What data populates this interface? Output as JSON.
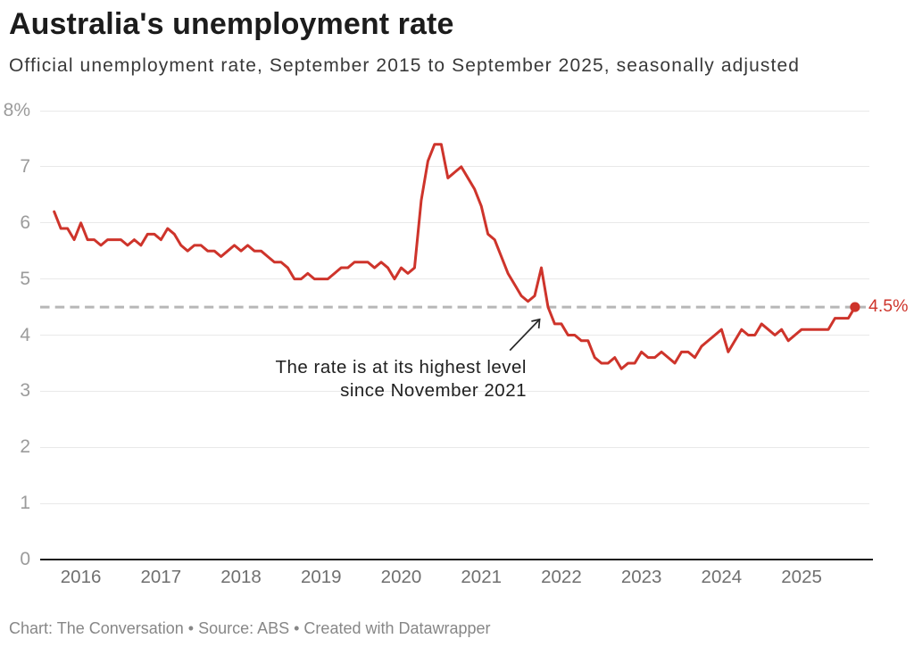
{
  "header": {
    "title": "Australia's unemployment rate",
    "subtitle": "Official unemployment rate, September 2015 to September 2025, seasonally adjusted"
  },
  "footer": {
    "text": "Chart: The Conversation • Source: ABS • Created with Datawrapper"
  },
  "annotation": {
    "line1": "The rate is at its highest level",
    "line2": "since November 2021"
  },
  "end_value_label": "4.5%",
  "chart_data": {
    "type": "line",
    "title": "Australia's unemployment rate",
    "subtitle": "Official unemployment rate, September 2015 to September 2025, seasonally adjusted",
    "x_start_month": "2015-09",
    "x_end_month": "2025-09",
    "x_tick_labels": [
      "2016",
      "2017",
      "2018",
      "2019",
      "2020",
      "2021",
      "2022",
      "2023",
      "2024",
      "2025"
    ],
    "y_tick_labels": [
      "0",
      "1",
      "2",
      "3",
      "4",
      "5",
      "6",
      "7",
      "8%"
    ],
    "ylim": [
      0,
      8
    ],
    "grid": true,
    "legend_position": "none",
    "reference_line_value": 4.5,
    "end_point": {
      "month": "2025-09",
      "value": 4.5,
      "label": "4.5%"
    },
    "series": [
      {
        "name": "Unemployment rate (%, seasonally adjusted)",
        "values": [
          6.2,
          5.9,
          5.9,
          5.7,
          6.0,
          5.7,
          5.7,
          5.6,
          5.7,
          5.7,
          5.7,
          5.6,
          5.7,
          5.6,
          5.8,
          5.8,
          5.7,
          5.9,
          5.8,
          5.6,
          5.5,
          5.6,
          5.6,
          5.5,
          5.5,
          5.4,
          5.5,
          5.6,
          5.5,
          5.6,
          5.5,
          5.5,
          5.4,
          5.3,
          5.3,
          5.2,
          5.0,
          5.0,
          5.1,
          5.0,
          5.0,
          5.0,
          5.1,
          5.2,
          5.2,
          5.3,
          5.3,
          5.3,
          5.2,
          5.3,
          5.2,
          5.0,
          5.2,
          5.1,
          5.2,
          6.4,
          7.1,
          7.4,
          7.4,
          6.8,
          6.9,
          7.0,
          6.8,
          6.6,
          6.3,
          5.8,
          5.7,
          5.4,
          5.1,
          4.9,
          4.7,
          4.6,
          4.7,
          5.2,
          4.5,
          4.2,
          4.2,
          4.0,
          4.0,
          3.9,
          3.9,
          3.6,
          3.5,
          3.5,
          3.6,
          3.4,
          3.5,
          3.5,
          3.7,
          3.6,
          3.6,
          3.7,
          3.6,
          3.5,
          3.7,
          3.7,
          3.6,
          3.8,
          3.9,
          4.0,
          4.1,
          3.7,
          3.9,
          4.1,
          4.0,
          4.0,
          4.2,
          4.1,
          4.0,
          4.1,
          3.9,
          4.0,
          4.1,
          4.1,
          4.1,
          4.1,
          4.1,
          4.3,
          4.3,
          4.3,
          4.5
        ]
      }
    ],
    "colors": {
      "line": "#ce342b",
      "reference_line": "#b7b7b7",
      "gridline": "#e9e9e9",
      "axis_baseline": "#1a1a1a",
      "arrow": "#282828"
    }
  }
}
